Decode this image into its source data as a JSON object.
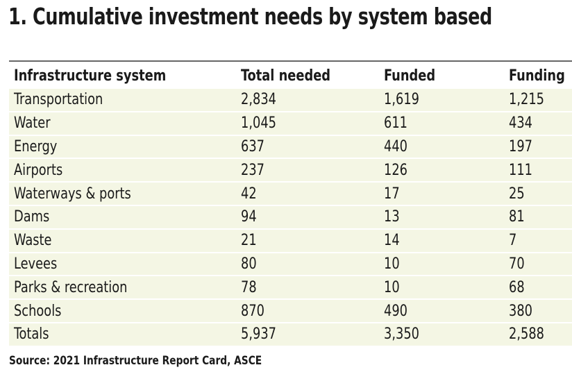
{
  "title": "1. Cumulative investment needs by system based",
  "columns": [
    "Infrastructure system",
    "Total needed",
    "Funded",
    "Funding"
  ],
  "rows": [
    [
      "Transportation",
      "2,834",
      "1,619",
      "1,215"
    ],
    [
      "Water",
      "1,045",
      "611",
      "434"
    ],
    [
      "Energy",
      "637",
      "440",
      "197"
    ],
    [
      "Airports",
      "237",
      "126",
      "111"
    ],
    [
      "Waterways & ports",
      "42",
      "17",
      "25"
    ],
    [
      "Dams",
      "94",
      "13",
      "81"
    ],
    [
      "Waste",
      "21",
      "14",
      "7"
    ],
    [
      "Levees",
      "80",
      "10",
      "70"
    ],
    [
      "Parks & recreation",
      "78",
      "10",
      "68"
    ],
    [
      "Schools",
      "870",
      "490",
      "380"
    ],
    [
      "Totals",
      "5,937",
      "3,350",
      "2,588"
    ]
  ],
  "source": "Source: 2021 Infrastructure Report Card, ASCE",
  "colors": {
    "row_background": "#f4f6e4",
    "rule": "#666666"
  }
}
